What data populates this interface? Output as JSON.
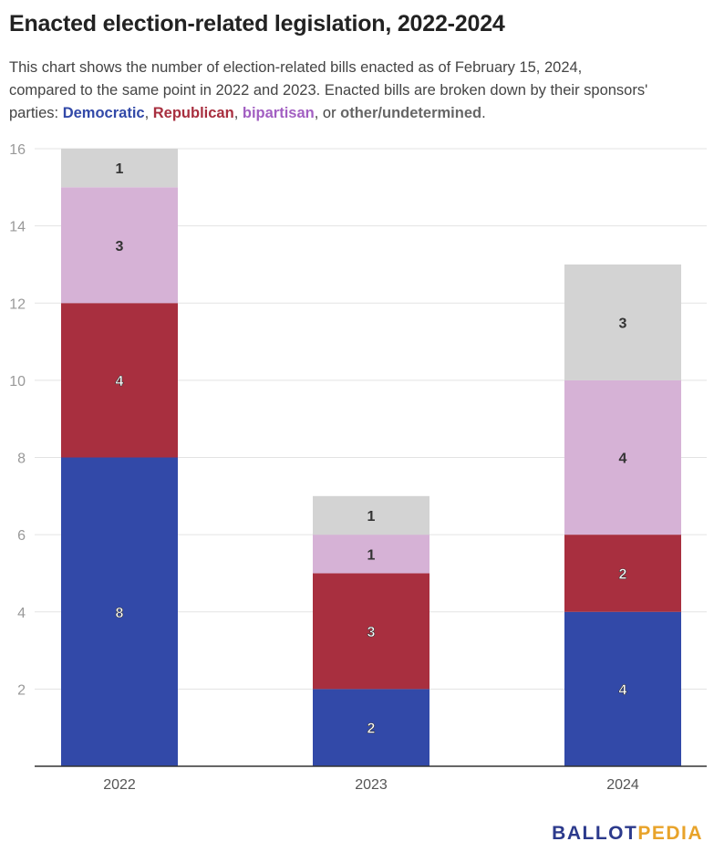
{
  "title": "Enacted election-related legislation, 2022-2024",
  "subtitle": {
    "line1": "This chart shows the number of election-related bills enacted as of February 15, 2024,",
    "line2": "compared to the same point in 2022 and 2023. Enacted bills are broken down by their sponsors'",
    "parties_prefix": "parties: ",
    "sep1": ", ",
    "sep2": ", ",
    "sep3": ", or ",
    "end": "."
  },
  "colors": {
    "democratic": "#3249a8",
    "republican": "#a82f3f",
    "bipartisan": "#d6b2d6",
    "other": "#d3d3d3",
    "bipartisan_text": "#a25fc2",
    "other_text": "#666666",
    "brand_dark": "#2c3a8c",
    "brand_accent": "#e8a32a"
  },
  "brand": {
    "part1": "BALLOT",
    "part2": "PEDIA"
  },
  "chart_data": {
    "type": "bar",
    "stacked": true,
    "categories": [
      "2022",
      "2023",
      "2024"
    ],
    "series": [
      {
        "name": "Democratic",
        "key": "democratic",
        "values": [
          8,
          2,
          4
        ]
      },
      {
        "name": "Republican",
        "key": "republican",
        "values": [
          4,
          3,
          2
        ]
      },
      {
        "name": "bipartisan",
        "key": "bipartisan",
        "values": [
          3,
          1,
          4
        ]
      },
      {
        "name": "other/undetermined",
        "key": "other",
        "values": [
          1,
          1,
          3
        ]
      }
    ],
    "ylim": [
      0,
      16
    ],
    "yticks": [
      2,
      4,
      6,
      8,
      10,
      12,
      14,
      16
    ],
    "grid": true,
    "data_labels": true
  }
}
